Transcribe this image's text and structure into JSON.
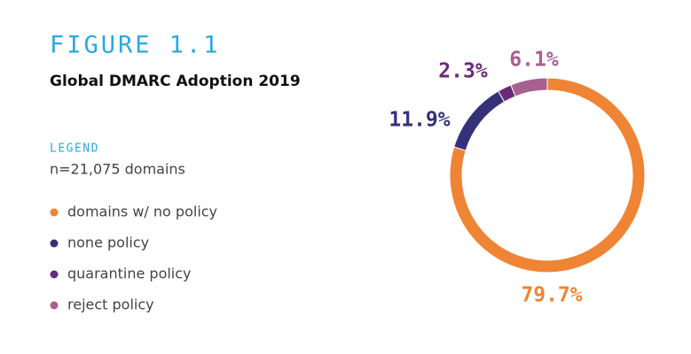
{
  "chart_data": {
    "type": "donut",
    "figure_label": "FIGURE 1.1",
    "title": "Global DMARC Adoption 2019",
    "legend_title": "LEGEND",
    "subtitle": "n=21,075 domains",
    "categories": [
      "domains w/ no policy",
      "none policy",
      "quarantine policy",
      "reject policy"
    ],
    "values": [
      79.7,
      11.9,
      2.3,
      6.1
    ],
    "value_labels": [
      "79.7%",
      "11.9%",
      "2.3%",
      "6.1%"
    ],
    "colors": [
      "#ef8434",
      "#35307a",
      "#6a2a7c",
      "#a8608f"
    ]
  }
}
